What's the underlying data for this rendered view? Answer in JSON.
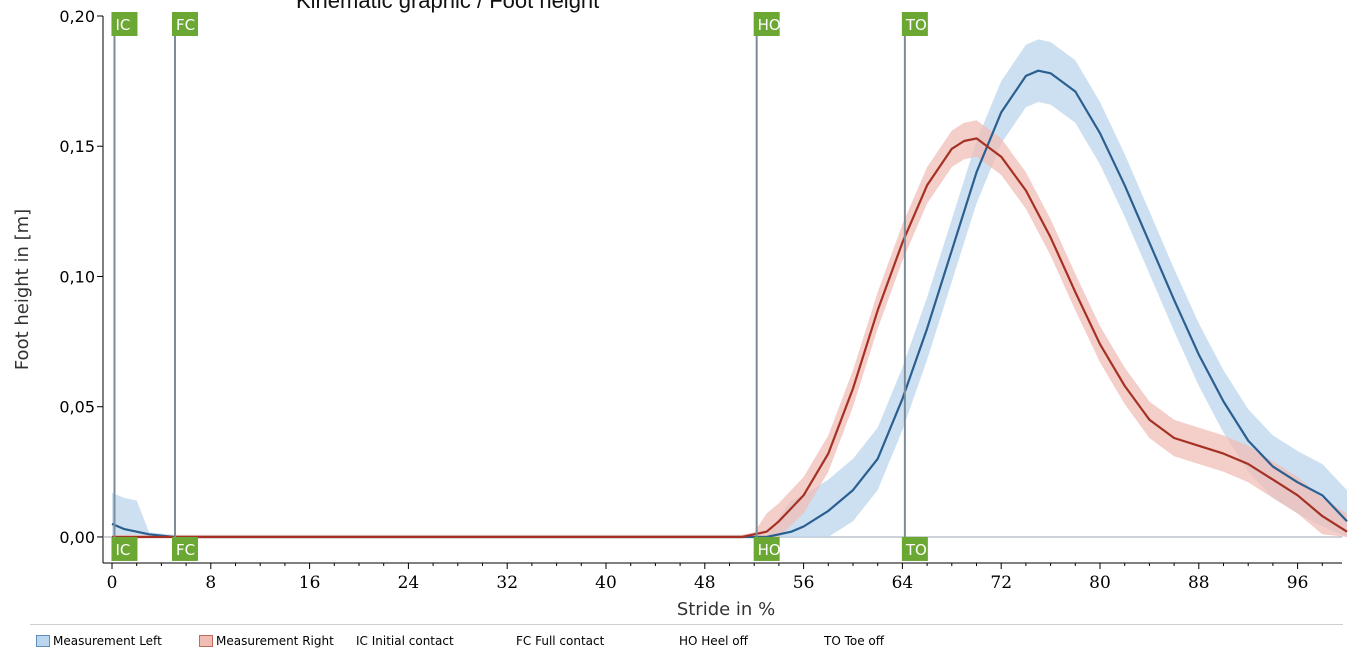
{
  "chart_data": {
    "type": "line",
    "title": "Kinematic graphic / Foot height",
    "xlabel": "Stride in %",
    "ylabel": "Foot height in [m]",
    "xlim": [
      0,
      100
    ],
    "ylim": [
      -0.01,
      0.2
    ],
    "x_ticks": [
      0,
      8,
      16,
      24,
      32,
      40,
      48,
      56,
      64,
      72,
      80,
      88,
      96
    ],
    "y_ticks": [
      0.0,
      0.05,
      0.1,
      0.15,
      0.2
    ],
    "y_tick_labels": [
      "0,00",
      "0,05",
      "0,10",
      "0,15",
      "0,20"
    ],
    "grid": false,
    "series": [
      {
        "name": "Measurement Left",
        "line_color": "#2a5f8f",
        "band_color": "#bcd6ee",
        "points": [
          [
            0,
            0.005
          ],
          [
            1,
            0.003
          ],
          [
            2,
            0.002
          ],
          [
            3,
            0.001
          ],
          [
            5,
            0.0
          ],
          [
            10,
            0.0
          ],
          [
            20,
            0.0
          ],
          [
            30,
            0.0
          ],
          [
            40,
            0.0
          ],
          [
            50,
            0.0
          ],
          [
            53,
            0.0
          ],
          [
            55,
            0.002
          ],
          [
            56,
            0.004
          ],
          [
            58,
            0.01
          ],
          [
            60,
            0.018
          ],
          [
            62,
            0.03
          ],
          [
            64,
            0.053
          ],
          [
            66,
            0.08
          ],
          [
            68,
            0.11
          ],
          [
            70,
            0.14
          ],
          [
            72,
            0.163
          ],
          [
            74,
            0.177
          ],
          [
            75,
            0.179
          ],
          [
            76,
            0.178
          ],
          [
            78,
            0.171
          ],
          [
            80,
            0.155
          ],
          [
            82,
            0.135
          ],
          [
            84,
            0.113
          ],
          [
            86,
            0.091
          ],
          [
            88,
            0.07
          ],
          [
            90,
            0.052
          ],
          [
            92,
            0.037
          ],
          [
            94,
            0.027
          ],
          [
            96,
            0.021
          ],
          [
            98,
            0.016
          ],
          [
            100,
            0.006
          ]
        ],
        "band": 0.012
      },
      {
        "name": "Measurement Right",
        "line_color": "#a53125",
        "band_color": "#f0bdb5",
        "points": [
          [
            0,
            0.0
          ],
          [
            10,
            0.0
          ],
          [
            20,
            0.0
          ],
          [
            30,
            0.0
          ],
          [
            40,
            0.0
          ],
          [
            50,
            0.0
          ],
          [
            51,
            0.0
          ],
          [
            52,
            0.001
          ],
          [
            53,
            0.002
          ],
          [
            54,
            0.006
          ],
          [
            56,
            0.016
          ],
          [
            58,
            0.032
          ],
          [
            60,
            0.057
          ],
          [
            62,
            0.087
          ],
          [
            64,
            0.113
          ],
          [
            66,
            0.135
          ],
          [
            68,
            0.149
          ],
          [
            69,
            0.152
          ],
          [
            70,
            0.153
          ],
          [
            72,
            0.146
          ],
          [
            74,
            0.133
          ],
          [
            76,
            0.115
          ],
          [
            78,
            0.094
          ],
          [
            80,
            0.074
          ],
          [
            82,
            0.058
          ],
          [
            84,
            0.045
          ],
          [
            86,
            0.038
          ],
          [
            88,
            0.035
          ],
          [
            90,
            0.032
          ],
          [
            92,
            0.028
          ],
          [
            94,
            0.022
          ],
          [
            96,
            0.016
          ],
          [
            98,
            0.008
          ],
          [
            100,
            0.002
          ]
        ],
        "band": 0.007
      }
    ],
    "events": [
      {
        "label": "IC",
        "x": 0.2
      },
      {
        "label": "FC",
        "x": 5.1
      },
      {
        "label": "HO",
        "x": 52.2
      },
      {
        "label": "TO",
        "x": 64.2
      }
    ],
    "event_color": "#6aa733",
    "legend": {
      "placement": "bottom",
      "items": [
        {
          "label": "Measurement Left",
          "swatch": "#bcd6ee",
          "swatch_border": "#5e8fbf"
        },
        {
          "label": "Measurement Right",
          "swatch": "#f0bdb5",
          "swatch_border": "#c36a5e"
        },
        {
          "label": "IC Initial contact"
        },
        {
          "label": "FC Full contact"
        },
        {
          "label": "HO Heel off"
        },
        {
          "label": "TO Toe off"
        }
      ]
    }
  }
}
